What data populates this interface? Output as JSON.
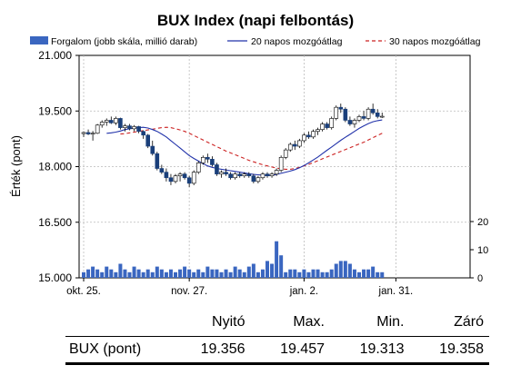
{
  "chart_data": {
    "type": "candlestick",
    "title": "BUX Index (napi felbontás)",
    "ylabel": "Érték (pont)",
    "legend": {
      "placement": "top",
      "entries": [
        {
          "label": "Forgalom (jobb skála, millió darab)",
          "style": "bar",
          "color": "#3a66c0"
        },
        {
          "label": "20 napos mozgóátlag",
          "style": "line",
          "color": "#2233aa"
        },
        {
          "label": "30 napos mozgóátlag",
          "style": "dashed",
          "color": "#cc2222"
        }
      ]
    },
    "y_left": {
      "ticks": [
        "21.000",
        "19.500",
        "18.000",
        "16.500",
        "15.000"
      ],
      "tick_values": [
        21000,
        19500,
        18000,
        16500,
        15000
      ],
      "ylim": [
        15000,
        21000
      ]
    },
    "y_right": {
      "ticks": [
        "20",
        "10",
        "0"
      ],
      "tick_values": [
        20,
        10,
        0
      ],
      "ylim": [
        0,
        20
      ]
    },
    "x_ticks": [
      {
        "label": "okt. 25.",
        "index": 0
      },
      {
        "label": "nov. 27.",
        "index": 23
      },
      {
        "label": "jan. 2.",
        "index": 48
      },
      {
        "label": "jan. 31.",
        "index": 68
      }
    ],
    "grid": true,
    "ohlc": [
      [
        18890,
        18950,
        18800,
        18920
      ],
      [
        18920,
        19000,
        18850,
        18880
      ],
      [
        18880,
        18960,
        18700,
        18900
      ],
      [
        18900,
        19150,
        18880,
        19120
      ],
      [
        19120,
        19250,
        19050,
        19200
      ],
      [
        19200,
        19300,
        19100,
        19250
      ],
      [
        19250,
        19350,
        19150,
        19180
      ],
      [
        19180,
        19350,
        19120,
        19300
      ],
      [
        19300,
        19320,
        19000,
        19050
      ],
      [
        19050,
        19150,
        18950,
        19100
      ],
      [
        19100,
        19150,
        18980,
        19020
      ],
      [
        19020,
        19120,
        18950,
        19080
      ],
      [
        19080,
        19100,
        18900,
        18950
      ],
      [
        18950,
        18980,
        18750,
        18850
      ],
      [
        18850,
        18880,
        18500,
        18550
      ],
      [
        18550,
        18700,
        18300,
        18350
      ],
      [
        18350,
        18400,
        17900,
        17950
      ],
      [
        17950,
        18050,
        17800,
        17850
      ],
      [
        17850,
        17950,
        17600,
        17700
      ],
      [
        17700,
        17800,
        17500,
        17600
      ],
      [
        17600,
        17800,
        17550,
        17750
      ],
      [
        17750,
        17850,
        17600,
        17800
      ],
      [
        17800,
        17850,
        17650,
        17700
      ],
      [
        17700,
        17750,
        17450,
        17550
      ],
      [
        17550,
        17900,
        17500,
        17850
      ],
      [
        17850,
        18150,
        17800,
        18100
      ],
      [
        18100,
        18300,
        18050,
        18250
      ],
      [
        18250,
        18350,
        18100,
        18200
      ],
      [
        18200,
        18280,
        18000,
        18050
      ],
      [
        18050,
        18100,
        17750,
        17800
      ],
      [
        17800,
        17900,
        17700,
        17850
      ],
      [
        17850,
        17950,
        17750,
        17800
      ],
      [
        17800,
        17850,
        17650,
        17700
      ],
      [
        17700,
        17850,
        17650,
        17800
      ],
      [
        17800,
        17850,
        17700,
        17750
      ],
      [
        17750,
        17850,
        17700,
        17800
      ],
      [
        17800,
        17850,
        17700,
        17750
      ],
      [
        17750,
        17800,
        17550,
        17600
      ],
      [
        17600,
        17750,
        17550,
        17700
      ],
      [
        17700,
        17850,
        17650,
        17800
      ],
      [
        17800,
        17850,
        17700,
        17750
      ],
      [
        17750,
        17850,
        17700,
        17800
      ],
      [
        17800,
        17950,
        17750,
        17900
      ],
      [
        17900,
        18300,
        17850,
        18250
      ],
      [
        18250,
        18500,
        18200,
        18450
      ],
      [
        18450,
        18650,
        18400,
        18600
      ],
      [
        18600,
        18700,
        18450,
        18550
      ],
      [
        18550,
        18750,
        18500,
        18700
      ],
      [
        18700,
        18900,
        18650,
        18850
      ],
      [
        18850,
        18950,
        18750,
        18800
      ],
      [
        18800,
        19000,
        18750,
        18950
      ],
      [
        18950,
        19050,
        18850,
        19000
      ],
      [
        19000,
        19200,
        18950,
        19150
      ],
      [
        19150,
        19200,
        19000,
        19050
      ],
      [
        19050,
        19350,
        19000,
        19300
      ],
      [
        19300,
        19650,
        19250,
        19600
      ],
      [
        19600,
        19700,
        19450,
        19550
      ],
      [
        19550,
        19600,
        19200,
        19250
      ],
      [
        19250,
        19350,
        19100,
        19150
      ],
      [
        19150,
        19300,
        19050,
        19250
      ],
      [
        19250,
        19400,
        19200,
        19350
      ],
      [
        19350,
        19500,
        19250,
        19300
      ],
      [
        19300,
        19600,
        19250,
        19550
      ],
      [
        19550,
        19700,
        19400,
        19450
      ],
      [
        19450,
        19550,
        19300,
        19350
      ],
      [
        19356,
        19457,
        19313,
        19358
      ]
    ],
    "volume": [
      2,
      3,
      4,
      3,
      2,
      4,
      3,
      2,
      5,
      3,
      2,
      4,
      3,
      2,
      3,
      2,
      4,
      3,
      2,
      3,
      2,
      3,
      4,
      3,
      2,
      3,
      2,
      4,
      3,
      3,
      2,
      3,
      2,
      4,
      3,
      2,
      4,
      5,
      2,
      3,
      6,
      5,
      13,
      8,
      2,
      3,
      3,
      2,
      3,
      2,
      3,
      3,
      2,
      2,
      3,
      5,
      6,
      6,
      5,
      3,
      2,
      3,
      3,
      4,
      2,
      2
    ],
    "ma20": [
      18900,
      18910,
      18930,
      18960,
      19000,
      19020,
      19040,
      19050,
      19060,
      19040,
      19000,
      18950,
      18880,
      18800,
      18700,
      18600,
      18500,
      18400,
      18300,
      18220,
      18150,
      18080,
      18020,
      17980,
      17950,
      17930,
      17910,
      17890,
      17870,
      17850,
      17830,
      17810,
      17790,
      17780,
      17770,
      17760,
      17770,
      17790,
      17820,
      17850,
      17880,
      17920,
      17970,
      18030,
      18100,
      18180,
      18260,
      18350,
      18440,
      18530,
      18620,
      18710,
      18790,
      18870,
      18950,
      19030,
      19100,
      19160,
      19210,
      19240,
      19260
    ],
    "ma30": [
      18880,
      18890,
      18910,
      18930,
      18950,
      18970,
      18990,
      19010,
      19030,
      19050,
      19060,
      19050,
      19020,
      18990,
      18950,
      18900,
      18840,
      18780,
      18720,
      18660,
      18600,
      18540,
      18480,
      18420,
      18370,
      18320,
      18270,
      18220,
      18170,
      18130,
      18090,
      18050,
      18020,
      17990,
      17960,
      17940,
      17930,
      17930,
      17950,
      17980,
      18020,
      18060,
      18110,
      18160,
      18210,
      18260,
      18310,
      18360,
      18410,
      18460,
      18510,
      18560,
      18610,
      18660,
      18720,
      18780,
      18840,
      18900
    ],
    "ma20_start_index": 5,
    "ma30_start_index": 8
  },
  "summary": {
    "headers": [
      "Nyitó",
      "Max.",
      "Min.",
      "Záró"
    ],
    "row_label": "BUX (pont)",
    "values": [
      "19.356",
      "19.457",
      "19.313",
      "19.358"
    ]
  }
}
